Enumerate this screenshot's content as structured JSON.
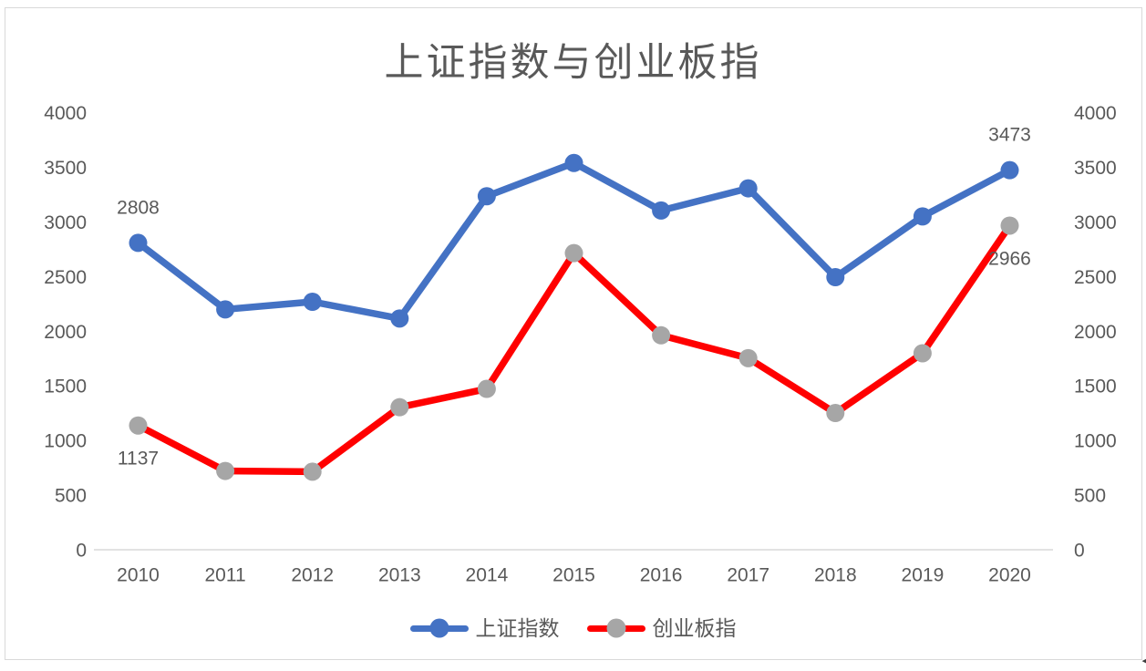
{
  "chart_data": {
    "type": "line",
    "title": "上证指数与创业板指",
    "categories": [
      "2010",
      "2011",
      "2012",
      "2013",
      "2014",
      "2015",
      "2016",
      "2017",
      "2018",
      "2019",
      "2020"
    ],
    "series": [
      {
        "name": "上证指数",
        "color": "#4472C4",
        "marker_color": "#4472C4",
        "values": [
          2808,
          2199,
          2269,
          2116,
          3235,
          3539,
          3104,
          3307,
          2494,
          3050,
          3473
        ],
        "labeled_points": [
          {
            "index": 0,
            "text": "2808",
            "position": "above"
          },
          {
            "index": 10,
            "text": "3473",
            "position": "above"
          }
        ]
      },
      {
        "name": "创业板指",
        "color": "#FF0000",
        "marker_color": "#A6A6A6",
        "values": [
          1137,
          721,
          714,
          1304,
          1472,
          2714,
          1962,
          1753,
          1251,
          1798,
          2966
        ],
        "labeled_points": [
          {
            "index": 0,
            "text": "1137",
            "position": "below"
          },
          {
            "index": 10,
            "text": "2966",
            "position": "below"
          }
        ]
      }
    ],
    "y_axis": {
      "min": 0,
      "max": 4000,
      "step": 500,
      "ticks": [
        "0",
        "500",
        "1000",
        "1500",
        "2000",
        "2500",
        "3000",
        "3500",
        "4000"
      ],
      "sides": [
        "left",
        "right"
      ]
    },
    "xlabel": "",
    "ylabel": "",
    "grid": false,
    "legend_position": "bottom"
  },
  "colors": {
    "text": "#595959",
    "axis_line": "#D9D9D9",
    "frame_border": "#D9D9D9"
  },
  "window": {
    "resize_glyph": "◀"
  }
}
